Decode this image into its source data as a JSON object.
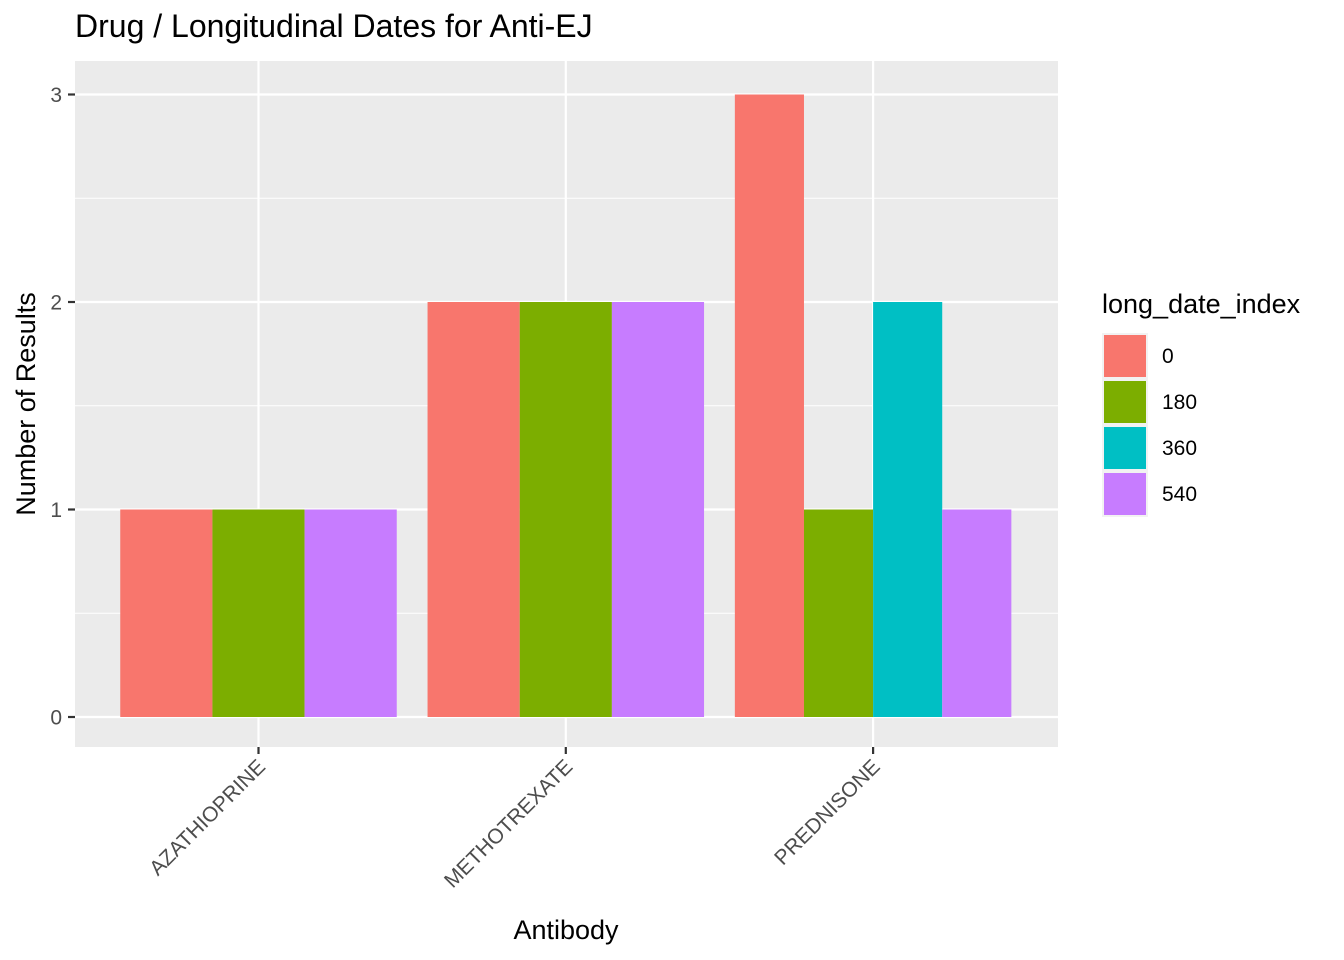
{
  "chart_data": {
    "type": "bar",
    "title": "Drug / Longitudinal Dates for Anti-EJ",
    "xlabel": "Antibody",
    "ylabel": "Number of Results",
    "ylim": [
      0,
      3
    ],
    "yticks": [
      "0",
      "1",
      "2",
      "3"
    ],
    "grid": true,
    "legend": {
      "title": "long_date_index",
      "position": "right"
    },
    "categories": [
      "AZATHIOPRINE",
      "METHOTREXATE",
      "PREDNISONE"
    ],
    "series": [
      {
        "name": "0",
        "color": "#F8766D",
        "values": [
          1,
          2,
          3
        ]
      },
      {
        "name": "180",
        "color": "#7CAE00",
        "values": [
          1,
          2,
          1
        ]
      },
      {
        "name": "360",
        "color": "#00BFC4",
        "values": [
          null,
          null,
          2
        ]
      },
      {
        "name": "540",
        "color": "#C77CFF",
        "values": [
          1,
          2,
          1
        ]
      }
    ],
    "colors": {
      "panel_background": "#EBEBEB",
      "grid": "#FFFFFF",
      "tick": "#333333"
    }
  }
}
